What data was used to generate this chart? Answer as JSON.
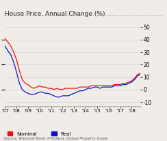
{
  "title": "House Price, Annual Change (%)",
  "source": "Source: National Bank of Poland, Global Property Guide",
  "ylim": [
    -13,
    56
  ],
  "xlim": [
    0,
    47
  ],
  "x_tick_labels": [
    "'07",
    "'08",
    "'09",
    "'10",
    "'11",
    "'12",
    "'13",
    "'14",
    "'15",
    "'16",
    "'17",
    "'18"
  ],
  "x_tick_positions": [
    0,
    4,
    8,
    12,
    16,
    20,
    24,
    28,
    32,
    36,
    40,
    44
  ],
  "nominal_color": "#ee1111",
  "real_color": "#1111cc",
  "background_color": "#f0ede8",
  "nominal_vals": [
    41,
    38,
    35,
    30,
    24,
    15,
    8,
    5,
    4,
    2,
    1,
    2,
    3,
    2,
    2,
    1,
    1,
    0,
    1,
    0,
    0,
    1,
    1,
    1,
    1,
    1,
    2,
    2,
    2,
    2,
    3,
    3,
    3,
    3,
    3,
    3,
    3,
    3,
    4,
    4,
    4,
    5,
    5,
    6,
    7,
    9,
    12,
    13
  ],
  "real_vals": [
    35,
    31,
    28,
    22,
    14,
    5,
    0,
    -2,
    -3,
    -4,
    -4,
    -3,
    -2,
    -2,
    -3,
    -3,
    -4,
    -5,
    -6,
    -6,
    -5,
    -5,
    -5,
    -4,
    -3,
    -2,
    -1,
    -1,
    0,
    1,
    1,
    2,
    2,
    1,
    2,
    2,
    2,
    2,
    3,
    3,
    3,
    4,
    4,
    5,
    6,
    8,
    11,
    12
  ]
}
